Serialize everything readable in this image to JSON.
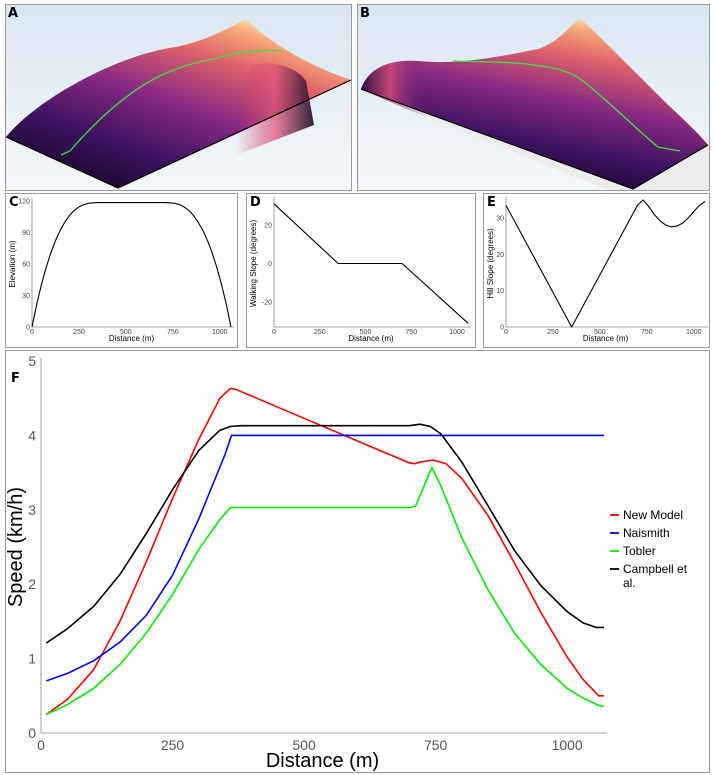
{
  "panels": {
    "a": {
      "label": "A"
    },
    "b": {
      "label": "B"
    }
  },
  "chart_data": [
    {
      "panel": "C",
      "type": "line",
      "xlabel": "Distance (m)",
      "ylabel": "Elevation (m)",
      "xlim": [
        0,
        1060
      ],
      "ylim": [
        0,
        120
      ],
      "xticks": [
        0,
        250,
        500,
        750,
        1000
      ],
      "yticks": [
        0,
        30,
        60,
        90,
        120
      ],
      "series": [
        {
          "color": "#000000",
          "x": [
            0,
            25,
            50,
            75,
            100,
            125,
            150,
            175,
            200,
            225,
            250,
            275,
            300,
            325,
            350,
            360,
            700,
            710,
            735,
            760,
            785,
            810,
            835,
            860,
            885,
            910,
            935,
            960,
            985,
            1010,
            1035,
            1060
          ],
          "y": [
            0,
            21.5,
            40.2,
            56.5,
            70.5,
            82.3,
            92.1,
            100.0,
            106.3,
            111.0,
            114.4,
            116.6,
            117.8,
            118.3,
            118.5,
            118.5,
            118.5,
            118.5,
            118.3,
            117.8,
            116.6,
            114.4,
            111.0,
            106.3,
            100.0,
            92.1,
            82.3,
            70.5,
            56.5,
            40.2,
            21.5,
            0
          ]
        }
      ]
    },
    {
      "panel": "D",
      "type": "line",
      "xlabel": "Distance (m)",
      "ylabel": "Walking Slope (degrees)",
      "xlim": [
        0,
        1060
      ],
      "ylim": [
        -33,
        33
      ],
      "xticks": [
        0,
        250,
        500,
        750,
        1000
      ],
      "yticks": [
        -20,
        0,
        20
      ],
      "series": [
        {
          "color": "#000000",
          "x": [
            0,
            350,
            700,
            1060
          ],
          "y": [
            31,
            0,
            0,
            -31
          ]
        }
      ]
    },
    {
      "panel": "E",
      "type": "line",
      "xlabel": "Distance (m)",
      "ylabel": "Hill Slope (degrees)",
      "xlim": [
        0,
        1060
      ],
      "ylim": [
        0,
        35
      ],
      "xticks": [
        0,
        250,
        500,
        750,
        1000
      ],
      "yticks": [
        0,
        10,
        20,
        30
      ],
      "series": [
        {
          "color": "#000000",
          "x": [
            0,
            350,
            700,
            730,
            760,
            790,
            820,
            850,
            880,
            910,
            940,
            970,
            1000,
            1030,
            1060
          ],
          "y": [
            33.5,
            0,
            33.5,
            35.0,
            33.2,
            31.0,
            29.3,
            28.1,
            27.6,
            27.8,
            28.6,
            30.0,
            31.8,
            33.5,
            34.6
          ]
        }
      ]
    },
    {
      "panel": "F",
      "type": "line",
      "xlabel": "Distance (m)",
      "ylabel": "Speed (km/h)",
      "xlim": [
        0,
        1070
      ],
      "ylim": [
        0,
        5
      ],
      "xticks": [
        0,
        250,
        500,
        750,
        1000
      ],
      "yticks": [
        0,
        1,
        2,
        3,
        4,
        5
      ],
      "legend_position": "right",
      "series": [
        {
          "name": "New Model",
          "color": "#ff0000",
          "x": [
            10,
            50,
            100,
            150,
            200,
            250,
            300,
            340,
            360,
            370,
            500,
            600,
            700,
            710,
            720,
            745,
            770,
            800,
            850,
            900,
            950,
            1000,
            1030,
            1060,
            1070
          ],
          "y": [
            0.25,
            0.45,
            0.85,
            1.5,
            2.3,
            3.15,
            3.95,
            4.5,
            4.63,
            4.62,
            4.23,
            3.93,
            3.63,
            3.62,
            3.64,
            3.67,
            3.62,
            3.42,
            2.92,
            2.28,
            1.62,
            1.02,
            0.72,
            0.5,
            0.5
          ]
        },
        {
          "name": "Naismith",
          "color": "#0000ff",
          "x": [
            10,
            50,
            100,
            150,
            200,
            250,
            300,
            330,
            350,
            362,
            500,
            700,
            900,
            1070
          ],
          "y": [
            0.7,
            0.8,
            0.97,
            1.22,
            1.58,
            2.12,
            2.88,
            3.4,
            3.75,
            4.0,
            4.0,
            4.0,
            4.0,
            4.0
          ]
        },
        {
          "name": "Tobler",
          "color": "#00ee00",
          "x": [
            10,
            50,
            100,
            150,
            200,
            250,
            300,
            340,
            360,
            500,
            700,
            712,
            743,
            760,
            800,
            850,
            900,
            950,
            1000,
            1030,
            1060,
            1070
          ],
          "y": [
            0.25,
            0.38,
            0.6,
            0.92,
            1.34,
            1.86,
            2.47,
            2.87,
            3.03,
            3.03,
            3.03,
            3.05,
            3.57,
            3.32,
            2.62,
            1.92,
            1.34,
            0.92,
            0.6,
            0.47,
            0.37,
            0.36
          ]
        },
        {
          "name": "Campbell et al.",
          "color": "#000000",
          "x": [
            10,
            50,
            100,
            150,
            200,
            250,
            300,
            340,
            360,
            380,
            500,
            700,
            720,
            740,
            760,
            800,
            850,
            900,
            950,
            1000,
            1030,
            1055,
            1070
          ],
          "y": [
            1.21,
            1.4,
            1.7,
            2.13,
            2.68,
            3.27,
            3.8,
            4.07,
            4.12,
            4.13,
            4.13,
            4.13,
            4.15,
            4.12,
            4.02,
            3.64,
            3.05,
            2.45,
            1.98,
            1.63,
            1.48,
            1.42,
            1.42
          ]
        }
      ]
    }
  ]
}
